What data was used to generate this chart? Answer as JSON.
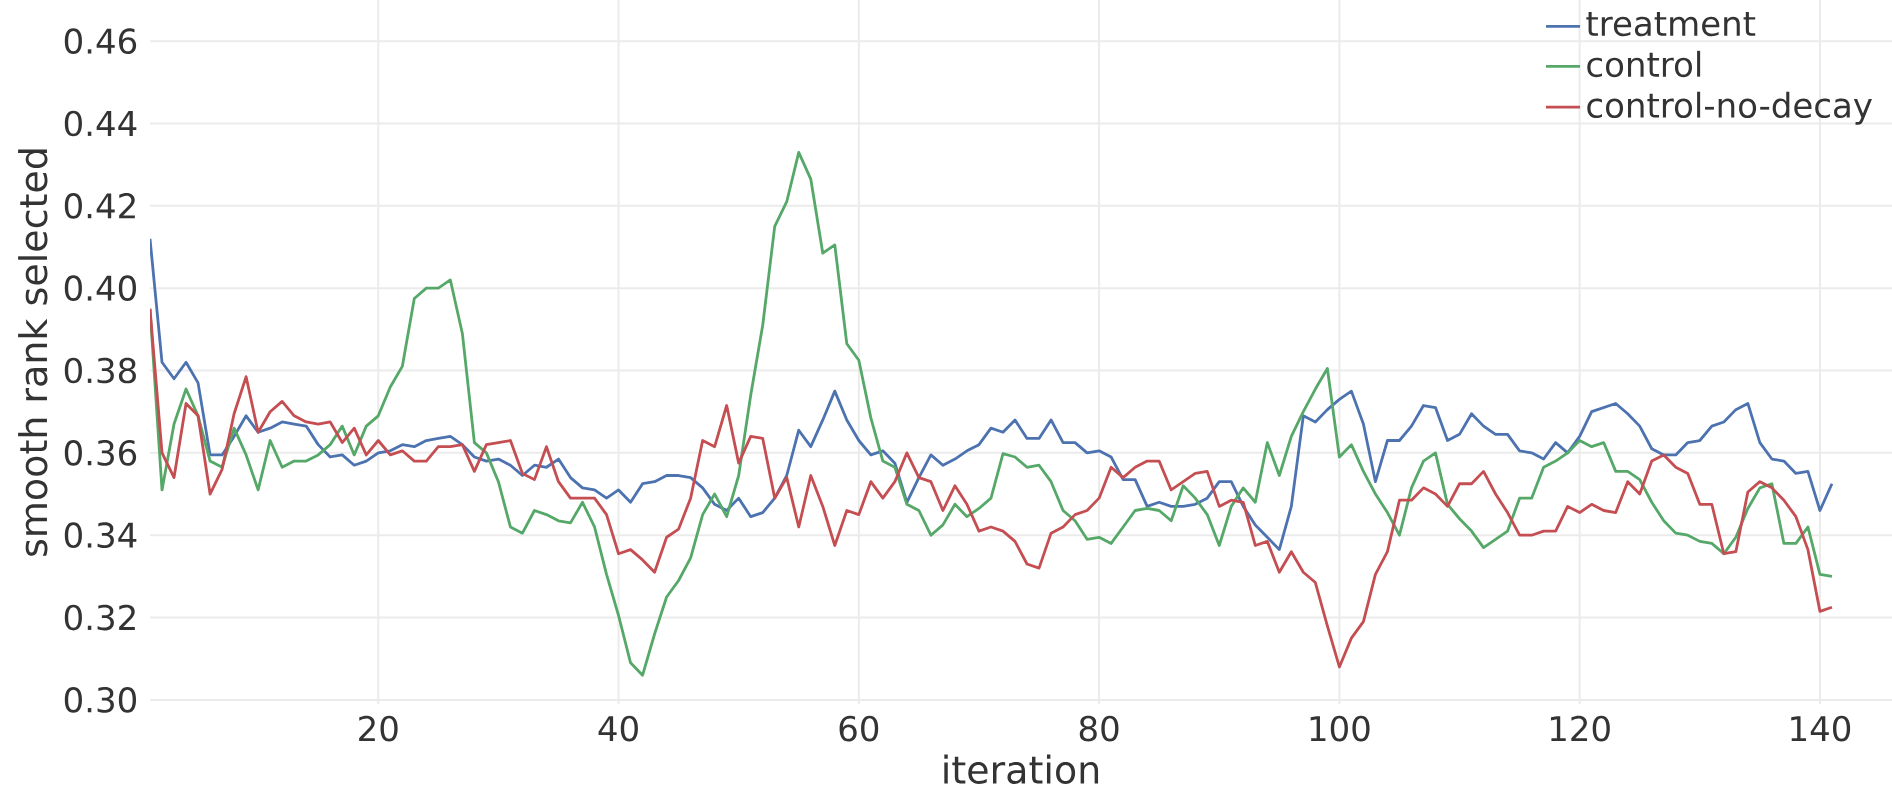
{
  "chart_data": {
    "type": "line",
    "xlabel": "iteration",
    "ylabel": "smooth rank selected",
    "x": [
      1,
      2,
      3,
      4,
      5,
      6,
      7,
      8,
      9,
      10,
      11,
      12,
      13,
      14,
      15,
      16,
      17,
      18,
      19,
      20,
      21,
      22,
      23,
      24,
      25,
      26,
      27,
      28,
      29,
      30,
      31,
      32,
      33,
      34,
      35,
      36,
      37,
      38,
      39,
      40,
      41,
      42,
      43,
      44,
      45,
      46,
      47,
      48,
      49,
      50,
      51,
      52,
      53,
      54,
      55,
      56,
      57,
      58,
      59,
      60,
      61,
      62,
      63,
      64,
      65,
      66,
      67,
      68,
      69,
      70,
      71,
      72,
      73,
      74,
      75,
      76,
      77,
      78,
      79,
      80,
      81,
      82,
      83,
      84,
      85,
      86,
      87,
      88,
      89,
      90,
      91,
      92,
      93,
      94,
      95,
      96,
      97,
      98,
      99,
      100,
      101,
      102,
      103,
      104,
      105,
      106,
      107,
      108,
      109,
      110,
      111,
      112,
      113,
      114,
      115,
      116,
      117,
      118,
      119,
      120,
      121,
      122,
      123,
      124,
      125,
      126,
      127,
      128,
      129,
      130,
      131,
      132,
      133,
      134,
      135,
      136,
      137,
      138,
      139,
      140,
      141
    ],
    "series": [
      {
        "name": "treatment",
        "color": "#4c72b0",
        "values": [
          0.412,
          0.382,
          0.378,
          0.382,
          0.377,
          0.3595,
          0.3595,
          0.364,
          0.369,
          0.365,
          0.366,
          0.3675,
          0.367,
          0.3665,
          0.362,
          0.359,
          0.3595,
          0.357,
          0.358,
          0.36,
          0.3605,
          0.362,
          0.3615,
          0.363,
          0.3635,
          0.364,
          0.362,
          0.359,
          0.358,
          0.3585,
          0.357,
          0.3545,
          0.357,
          0.3565,
          0.3585,
          0.354,
          0.3515,
          0.351,
          0.349,
          0.351,
          0.348,
          0.3525,
          0.353,
          0.3545,
          0.3545,
          0.354,
          0.3515,
          0.3475,
          0.346,
          0.349,
          0.3445,
          0.3455,
          0.349,
          0.3545,
          0.3655,
          0.3615,
          0.368,
          0.375,
          0.368,
          0.363,
          0.3595,
          0.3605,
          0.3575,
          0.348,
          0.354,
          0.3595,
          0.357,
          0.3585,
          0.3605,
          0.362,
          0.366,
          0.365,
          0.368,
          0.3635,
          0.3635,
          0.368,
          0.3625,
          0.3625,
          0.36,
          0.3605,
          0.359,
          0.3535,
          0.3535,
          0.347,
          0.348,
          0.347,
          0.347,
          0.3475,
          0.349,
          0.353,
          0.353,
          0.347,
          0.3425,
          0.3395,
          0.3365,
          0.347,
          0.369,
          0.3675,
          0.3705,
          0.373,
          0.375,
          0.367,
          0.353,
          0.363,
          0.363,
          0.3665,
          0.3715,
          0.371,
          0.363,
          0.3645,
          0.3695,
          0.3665,
          0.3645,
          0.3645,
          0.3605,
          0.36,
          0.3585,
          0.3625,
          0.36,
          0.364,
          0.37,
          0.371,
          0.372,
          0.3695,
          0.3665,
          0.361,
          0.3595,
          0.3595,
          0.3625,
          0.363,
          0.3665,
          0.3675,
          0.3705,
          0.372,
          0.3625,
          0.3585,
          0.358,
          0.355,
          0.3555,
          0.346,
          0.3525
        ]
      },
      {
        "name": "control",
        "color": "#55a868",
        "values": [
          0.395,
          0.351,
          0.367,
          0.3755,
          0.369,
          0.358,
          0.3565,
          0.366,
          0.3595,
          0.351,
          0.363,
          0.3565,
          0.358,
          0.358,
          0.3595,
          0.362,
          0.3665,
          0.3595,
          0.3665,
          0.369,
          0.376,
          0.381,
          0.3975,
          0.4,
          0.4,
          0.402,
          0.389,
          0.3625,
          0.36,
          0.353,
          0.342,
          0.3405,
          0.346,
          0.345,
          0.3435,
          0.343,
          0.348,
          0.342,
          0.3305,
          0.3205,
          0.309,
          0.306,
          0.316,
          0.325,
          0.329,
          0.3345,
          0.345,
          0.35,
          0.3445,
          0.3545,
          0.374,
          0.391,
          0.415,
          0.421,
          0.433,
          0.4265,
          0.4085,
          0.4105,
          0.3865,
          0.3825,
          0.3685,
          0.358,
          0.3565,
          0.3475,
          0.346,
          0.34,
          0.3425,
          0.3475,
          0.3445,
          0.3465,
          0.349,
          0.3598,
          0.359,
          0.3565,
          0.357,
          0.353,
          0.346,
          0.3435,
          0.339,
          0.3395,
          0.338,
          0.342,
          0.346,
          0.3465,
          0.346,
          0.3435,
          0.352,
          0.349,
          0.345,
          0.3375,
          0.347,
          0.3515,
          0.348,
          0.3625,
          0.3545,
          0.364,
          0.37,
          0.3755,
          0.3805,
          0.359,
          0.362,
          0.3555,
          0.35,
          0.3455,
          0.34,
          0.3515,
          0.358,
          0.36,
          0.3475,
          0.344,
          0.341,
          0.337,
          0.339,
          0.341,
          0.349,
          0.349,
          0.3565,
          0.358,
          0.36,
          0.363,
          0.3615,
          0.3625,
          0.3555,
          0.3555,
          0.3535,
          0.348,
          0.3435,
          0.3405,
          0.34,
          0.3385,
          0.338,
          0.3355,
          0.3395,
          0.3465,
          0.3515,
          0.3525,
          0.338,
          0.338,
          0.342,
          0.3305,
          0.33
        ]
      },
      {
        "name": "control-no-decay",
        "color": "#c44e52",
        "values": [
          0.395,
          0.36,
          0.354,
          0.372,
          0.369,
          0.35,
          0.356,
          0.3695,
          0.3785,
          0.365,
          0.37,
          0.3725,
          0.369,
          0.3675,
          0.367,
          0.3675,
          0.3625,
          0.366,
          0.3595,
          0.363,
          0.3595,
          0.3605,
          0.358,
          0.358,
          0.3615,
          0.3615,
          0.362,
          0.3555,
          0.362,
          0.3625,
          0.363,
          0.355,
          0.3535,
          0.3615,
          0.353,
          0.349,
          0.349,
          0.349,
          0.345,
          0.3355,
          0.3365,
          0.334,
          0.331,
          0.3395,
          0.3415,
          0.349,
          0.363,
          0.3615,
          0.3715,
          0.3575,
          0.364,
          0.3635,
          0.349,
          0.354,
          0.342,
          0.3545,
          0.347,
          0.3375,
          0.346,
          0.345,
          0.353,
          0.349,
          0.353,
          0.36,
          0.354,
          0.353,
          0.346,
          0.352,
          0.3475,
          0.341,
          0.342,
          0.341,
          0.3385,
          0.333,
          0.332,
          0.3405,
          0.342,
          0.345,
          0.346,
          0.349,
          0.3565,
          0.354,
          0.3565,
          0.358,
          0.358,
          0.351,
          0.353,
          0.355,
          0.3555,
          0.347,
          0.3485,
          0.348,
          0.3375,
          0.3385,
          0.331,
          0.336,
          0.331,
          0.3285,
          0.318,
          0.308,
          0.315,
          0.319,
          0.3305,
          0.336,
          0.3485,
          0.3485,
          0.3515,
          0.35,
          0.347,
          0.3525,
          0.3525,
          0.3555,
          0.35,
          0.3455,
          0.34,
          0.34,
          0.341,
          0.341,
          0.347,
          0.3455,
          0.3475,
          0.346,
          0.3455,
          0.353,
          0.35,
          0.358,
          0.3595,
          0.3565,
          0.355,
          0.3475,
          0.3475,
          0.3355,
          0.336,
          0.3505,
          0.353,
          0.3515,
          0.3485,
          0.3445,
          0.3365,
          0.3215,
          0.3225
        ]
      }
    ],
    "xlim": [
      1,
      146
    ],
    "ylim": [
      0.299,
      0.47
    ],
    "xticks": [
      20,
      40,
      60,
      80,
      100,
      120,
      140
    ],
    "yticks": [
      {
        "value": 0.3,
        "label": "0.30"
      },
      0.32,
      0.34,
      0.36,
      0.38,
      {
        "value": 0.4,
        "label": "0.40"
      },
      0.42,
      0.44,
      0.46
    ],
    "grid": true,
    "legend": "top right",
    "line_style": "solid"
  }
}
